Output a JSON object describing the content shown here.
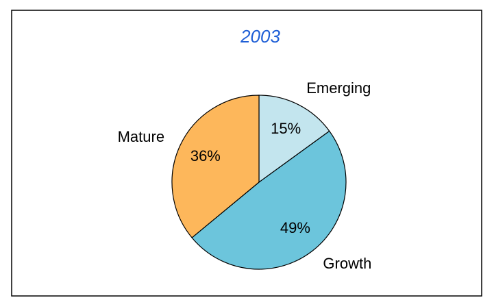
{
  "chart_data": {
    "type": "pie",
    "title": "2003",
    "categories": [
      "Emerging",
      "Growth",
      "Mature"
    ],
    "values": [
      15,
      49,
      36
    ],
    "value_labels": [
      "15%",
      "49%",
      "36%"
    ],
    "colors": [
      "#c3e5ee",
      "#6cc5dc",
      "#fdb75b"
    ]
  }
}
